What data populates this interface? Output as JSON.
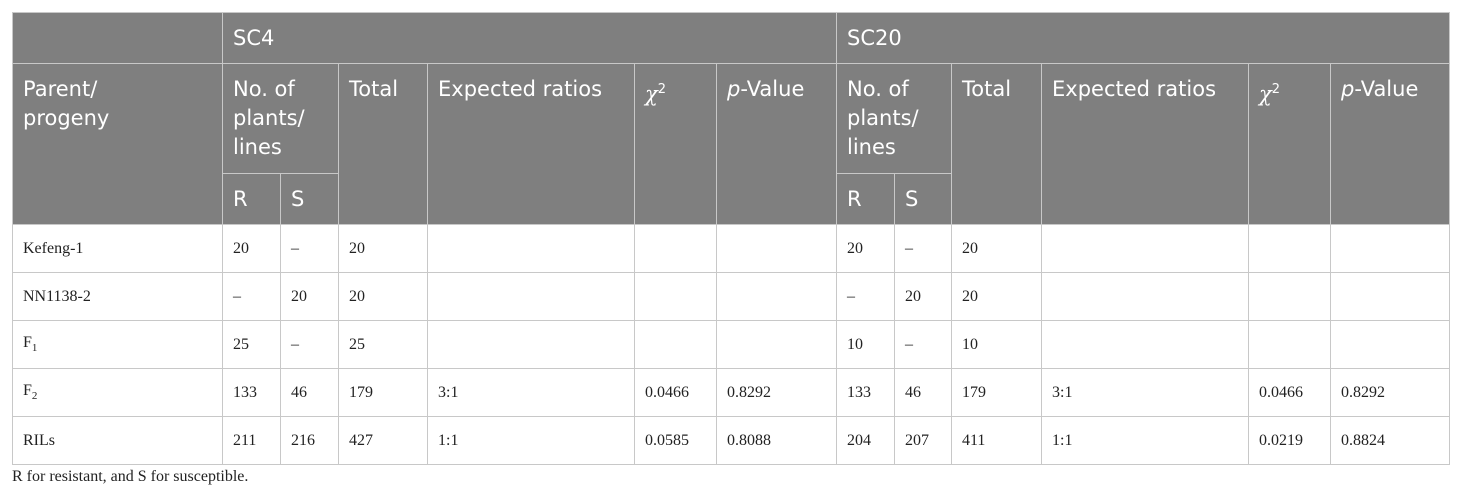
{
  "table": {
    "groups": [
      {
        "name": "SC4",
        "headers": {
          "count": "No. of plants/ lines",
          "total": "Total",
          "ratio": "Expected ratios",
          "chi": {
            "base": "χ",
            "sup": "2"
          },
          "p": {
            "italic": "p",
            "rest": "-Value"
          },
          "r": "R",
          "s": "S"
        }
      },
      {
        "name": "SC20",
        "headers": {
          "count": "No. of plants/ lines",
          "total": "Total",
          "ratio": "Expected ratios",
          "chi": {
            "base": "χ",
            "sup": "2"
          },
          "p": {
            "italic": "p",
            "rest": "-Value"
          },
          "r": "R",
          "s": "S"
        }
      }
    ],
    "row_header": "Parent/ progeny",
    "rows": [
      {
        "label": {
          "base": "Kefeng-1"
        },
        "cells": [
          20,
          "–",
          20,
          null,
          null,
          null,
          20,
          "–",
          20,
          null,
          null,
          null
        ]
      },
      {
        "label": {
          "base": "NN1138-2"
        },
        "cells": [
          "–",
          20,
          20,
          null,
          null,
          null,
          "–",
          20,
          20,
          null,
          null,
          null
        ]
      },
      {
        "label": {
          "base": "F",
          "sub": "1"
        },
        "cells": [
          25,
          "–",
          25,
          null,
          null,
          null,
          10,
          "–",
          10,
          null,
          null,
          null
        ]
      },
      {
        "label": {
          "base": "F",
          "sub": "2"
        },
        "cells": [
          133,
          46,
          179,
          "3:1",
          0.0466,
          0.8292,
          133,
          46,
          179,
          "3:1",
          0.0466,
          0.8292
        ]
      },
      {
        "label": {
          "base": "RILs"
        },
        "cells": [
          211,
          216,
          427,
          "1:1",
          0.0585,
          0.8088,
          204,
          207,
          411,
          "1:1",
          0.0219,
          0.8824
        ]
      }
    ],
    "footnote": "R for resistant, and S for susceptible."
  }
}
